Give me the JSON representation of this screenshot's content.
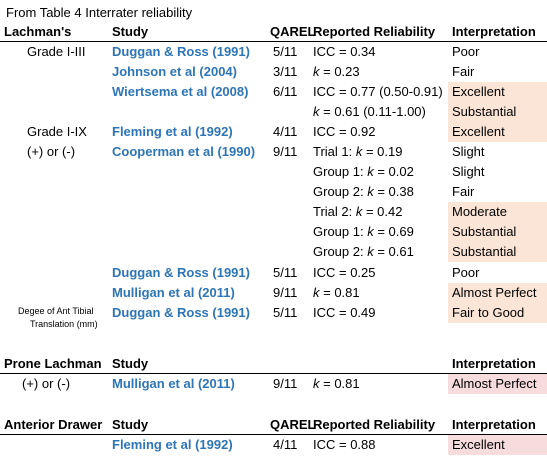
{
  "caption": "From Table 4 Interrater reliability",
  "header1": {
    "test": "Lachman's",
    "study": "Study",
    "qarel": "QAREL",
    "reliability": "Reported Reliability",
    "interpretation": "Interpretation"
  },
  "rows1": [
    {
      "group": "Grade I-III",
      "study": "Duggan & Ross (1991)",
      "qarel": "5/11",
      "reliability": "ICC = 0.34",
      "interp": "Poor"
    },
    {
      "study": "Johnson et al (2004)",
      "qarel": "3/11",
      "rel_k": "k",
      "reliability": " = 0.23",
      "interp": "Fair"
    },
    {
      "study": "Wiertsema et al (2008)",
      "qarel": "6/11",
      "reliability": "ICC = 0.77 (0.50-0.91)",
      "interp": "Excellent"
    },
    {
      "rel_k": "k",
      "reliability": " = 0.61 (0.11-1.00)",
      "interp": "Substantial"
    },
    {
      "group": "Grade I-IX",
      "study": "Fleming et al (1992)",
      "qarel": "4/11",
      "reliability": "ICC = 0.92",
      "interp": "Excellent"
    },
    {
      "group": "(+) or (-)",
      "study": "Cooperman et al (1990)",
      "qarel": "9/11",
      "rel_pre": "Trial 1: ",
      "rel_k": "k",
      "reliability": " = 0.19",
      "interp": "Slight"
    },
    {
      "rel_pre": "Group 1: ",
      "rel_k": "k",
      "reliability": " = 0.02",
      "interp": "Slight"
    },
    {
      "rel_pre": "Group 2: ",
      "rel_k": "k",
      "reliability": " = 0.38",
      "interp": "Fair"
    },
    {
      "rel_pre": "Trial 2: ",
      "rel_k": "k",
      "reliability": " = 0.42",
      "interp": "Moderate"
    },
    {
      "rel_pre": "Group 1: ",
      "rel_k": "k",
      "reliability": " = 0.69",
      "interp": "Substantial"
    },
    {
      "rel_pre": "Group 2: ",
      "rel_k": "k",
      "reliability": " = 0.61",
      "interp": "Substantial"
    },
    {
      "study": "Duggan & Ross (1991)",
      "qarel": "5/11",
      "reliability": "ICC = 0.25",
      "interp": "Poor"
    },
    {
      "study": "Mulligan et al (2011)",
      "qarel": "9/11",
      "rel_k": "k",
      "reliability": " = 0.81",
      "interp": "Almost Perfect"
    },
    {
      "group_line1": "Degee of Ant Tibial",
      "group_line2": "Translation (mm)",
      "study": "Duggan & Ross (1991)",
      "qarel": "5/11",
      "reliability": "ICC = 0.49",
      "interp": "Fair to Good"
    }
  ],
  "header2": {
    "test": "Prone Lachman",
    "study": "Study",
    "interpretation": "Interpretation"
  },
  "rows2": [
    {
      "group": "(+) or (-)",
      "study": "Mulligan et al (2011)",
      "qarel": "9/11",
      "rel_k": "k",
      "reliability": " = 0.81",
      "interp": "Almost Perfect"
    }
  ],
  "header3": {
    "test": "Anterior Drawer",
    "study": "Study",
    "qarel": "QAREL",
    "reliability": "Reported Reliability",
    "interpretation": "Interpretation"
  },
  "rows3": [
    {
      "study": "Fleming et al (1992)",
      "qarel": "4/11",
      "reliability": "ICC = 0.88",
      "interp": "Excellent"
    }
  ]
}
